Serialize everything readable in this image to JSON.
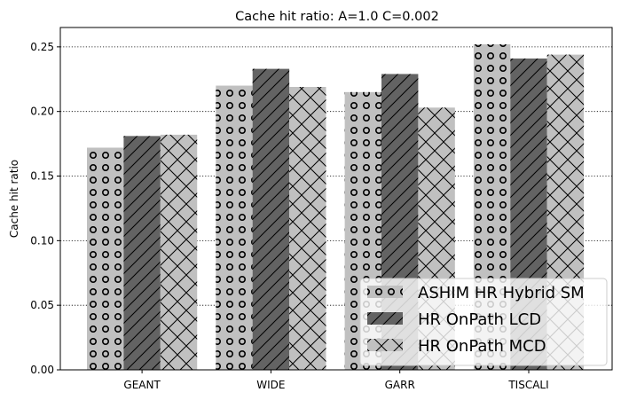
{
  "chart_data": {
    "type": "bar",
    "title": "Cache hit ratio: A=1.0 C=0.002",
    "ylabel": "Cache hit ratio",
    "xlabel": "",
    "categories": [
      "GEANT",
      "WIDE",
      "GARR",
      "TISCALI"
    ],
    "ylim": [
      0.0,
      0.265
    ],
    "yticks": [
      "0.00",
      "0.05",
      "0.10",
      "0.15",
      "0.20",
      "0.25"
    ],
    "grid": "horizontal-dotted",
    "legend_position": "bottom-right",
    "series": [
      {
        "name": "ASHIM HR Hybrid SM",
        "values": [
          0.172,
          0.22,
          0.215,
          0.252
        ],
        "color": "#c0c0c0",
        "hatch": "circles"
      },
      {
        "name": "HR OnPath LCD",
        "values": [
          0.181,
          0.233,
          0.229,
          0.241
        ],
        "color": "#636363",
        "hatch": "diagonal"
      },
      {
        "name": "HR OnPath MCD",
        "values": [
          0.182,
          0.219,
          0.203,
          0.244
        ],
        "color": "#c0c0c0",
        "hatch": "crosshatch"
      }
    ]
  }
}
